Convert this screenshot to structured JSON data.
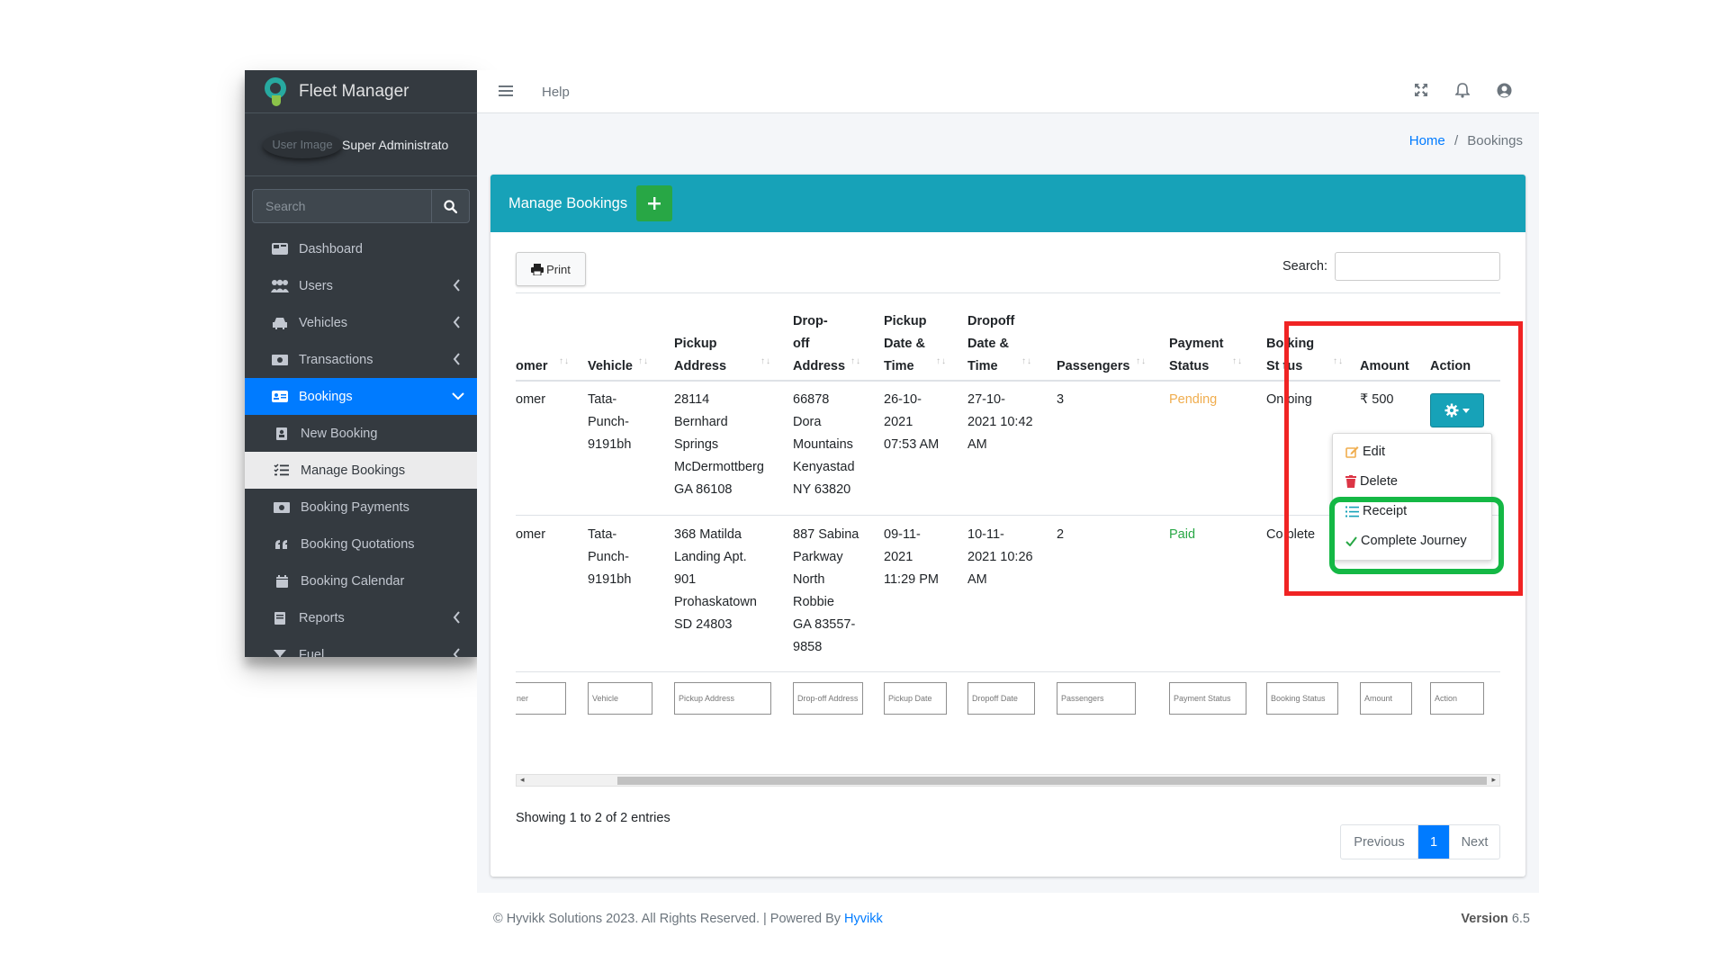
{
  "sidebar": {
    "brand": "Fleet Manager",
    "user_image_alt": "User Image",
    "user_name": "Super Administrato",
    "search_placeholder": "Search",
    "items": [
      {
        "label": "Dashboard",
        "icon": "dashboard-icon"
      },
      {
        "label": "Users",
        "icon": "users-icon"
      },
      {
        "label": "Vehicles",
        "icon": "car-icon"
      },
      {
        "label": "Transactions",
        "icon": "money-icon"
      },
      {
        "label": "Bookings",
        "icon": "address-card-icon"
      },
      {
        "label": "New Booking",
        "icon": "address-book-icon"
      },
      {
        "label": "Manage Bookings",
        "icon": "list-check-icon"
      },
      {
        "label": "Booking Payments",
        "icon": "money-icon"
      },
      {
        "label": "Booking Quotations",
        "icon": "quote-icon"
      },
      {
        "label": "Booking Calendar",
        "icon": "calendar-icon"
      },
      {
        "label": "Reports",
        "icon": "book-icon"
      },
      {
        "label": "Fuel",
        "icon": "filter-icon"
      }
    ]
  },
  "navbar": {
    "help": "Help"
  },
  "breadcrumb": {
    "home": "Home",
    "separator": "/",
    "current": "Bookings"
  },
  "card": {
    "title": "Manage Bookings"
  },
  "toolbar": {
    "print": "Print",
    "search_label": "Search:"
  },
  "table": {
    "headers": [
      "omer",
      "Vehicle",
      "Pickup\nAddress",
      "Drop-\noff\nAddress",
      "Pickup\nDate &\nTime",
      "Dropoff\nDate &\nTime",
      "Passengers",
      "Payment\nStatus",
      "Bo king\nSt tus",
      "Amount",
      "Action"
    ],
    "rows": [
      {
        "customer": "omer",
        "vehicle": "Tata-\nPunch-\n9191bh",
        "pickup_address": "28114\nBernhard\nSprings\nMcDermottberg\nGA 86108",
        "dropoff_address": "66878\nDora\nMountains\nKenyastad\nNY 63820",
        "pickup_time": "26-10-\n2021\n07:53 AM",
        "dropoff_time": "27-10-\n2021 10:42\nAM",
        "passengers": "3",
        "payment_status": "Pending",
        "booking_status": "On oing",
        "amount": "₹ 500"
      },
      {
        "customer": "omer",
        "vehicle": "Tata-\nPunch-\n9191bh",
        "pickup_address": "368 Matilda\nLanding Apt.\n901\nProhaskatown\nSD 24803",
        "dropoff_address": "887 Sabina\nParkway\nNorth\nRobbie\nGA 83557-\n9858",
        "pickup_time": "09-11-\n2021\n11:29 PM",
        "dropoff_time": "10-11-\n2021 10:26\nAM",
        "passengers": "2",
        "payment_status": "Paid",
        "booking_status": "Co plete",
        "amount": ""
      }
    ],
    "footer_filters": [
      "ner",
      "Vehicle",
      "Pickup Address",
      "Drop-off Address",
      "Pickup Date",
      "Dropoff Date",
      "Passengers",
      "Payment Status",
      "Booking Status",
      "Amount",
      "Action"
    ]
  },
  "dropdown": {
    "edit": "Edit",
    "delete": "Delete",
    "receipt": "Receipt",
    "complete": "Complete Journey"
  },
  "pagination": {
    "info": "Showing 1 to 2 of 2 entries",
    "previous": "Previous",
    "current": "1",
    "next": "Next"
  },
  "footer": {
    "copyright": "© Hyvikk Solutions 2023. All Rights Reserved. | Powered By ",
    "powered_link": "Hyvikk",
    "version_label": "Version",
    "version": "6.5"
  },
  "colors": {
    "pending": "#f0ad4e",
    "paid": "#28a745",
    "highlight_red": "#f02424",
    "highlight_green": "#14b845"
  }
}
